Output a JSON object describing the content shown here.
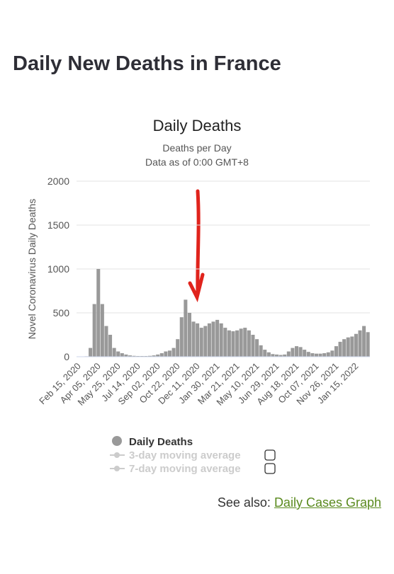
{
  "header": {
    "title": "Daily New Deaths in France"
  },
  "chart_data": {
    "type": "bar",
    "title": "Daily Deaths",
    "subtitle": "Deaths per Day",
    "subtitle2": "Data as of 0:00 GMT+8",
    "y_label": "Novel Coronavirus Daily Deaths",
    "categories": [
      "Feb 15, 2020",
      null,
      null,
      null,
      null,
      "Apr 05, 2020",
      null,
      null,
      null,
      null,
      "May 25, 2020",
      null,
      null,
      null,
      null,
      "Jul 14, 2020",
      null,
      null,
      null,
      null,
      "Sep 02, 2020",
      null,
      null,
      null,
      null,
      "Oct 22, 2020",
      null,
      null,
      null,
      null,
      "Dec 11, 2020",
      null,
      null,
      null,
      null,
      "Jan 30, 2021",
      null,
      null,
      null,
      null,
      "Mar 21, 2021",
      null,
      null,
      null,
      null,
      "May 10, 2021",
      null,
      null,
      null,
      null,
      "Jun 29, 2021",
      null,
      null,
      null,
      null,
      "Aug 18, 2021",
      null,
      null,
      null,
      null,
      "Oct 07, 2021",
      null,
      null,
      null,
      null,
      "Nov 26, 2021",
      null,
      null,
      null,
      null,
      "Jan 15, 2022",
      null,
      null,
      null
    ],
    "series": [
      {
        "name": "Daily Deaths",
        "color": "#999999",
        "values": [
          0,
          0,
          5,
          100,
          600,
          1000,
          600,
          350,
          250,
          100,
          60,
          40,
          25,
          15,
          10,
          8,
          8,
          8,
          10,
          15,
          25,
          40,
          60,
          70,
          100,
          200,
          450,
          650,
          500,
          400,
          380,
          330,
          350,
          380,
          400,
          420,
          380,
          330,
          300,
          290,
          300,
          320,
          330,
          300,
          250,
          200,
          130,
          80,
          50,
          30,
          25,
          20,
          25,
          60,
          100,
          120,
          110,
          80,
          55,
          40,
          35,
          35,
          40,
          50,
          70,
          120,
          170,
          200,
          220,
          230,
          260,
          300,
          350,
          280
        ]
      }
    ],
    "legend_extra": [
      "3-day moving average",
      "7-day moving average"
    ],
    "ylim": [
      0,
      2000
    ],
    "yticks": [
      0,
      500,
      1000,
      1500,
      2000
    ],
    "grid": true
  },
  "footer": {
    "prefix": "See also:",
    "link": "Daily Cases Graph"
  }
}
